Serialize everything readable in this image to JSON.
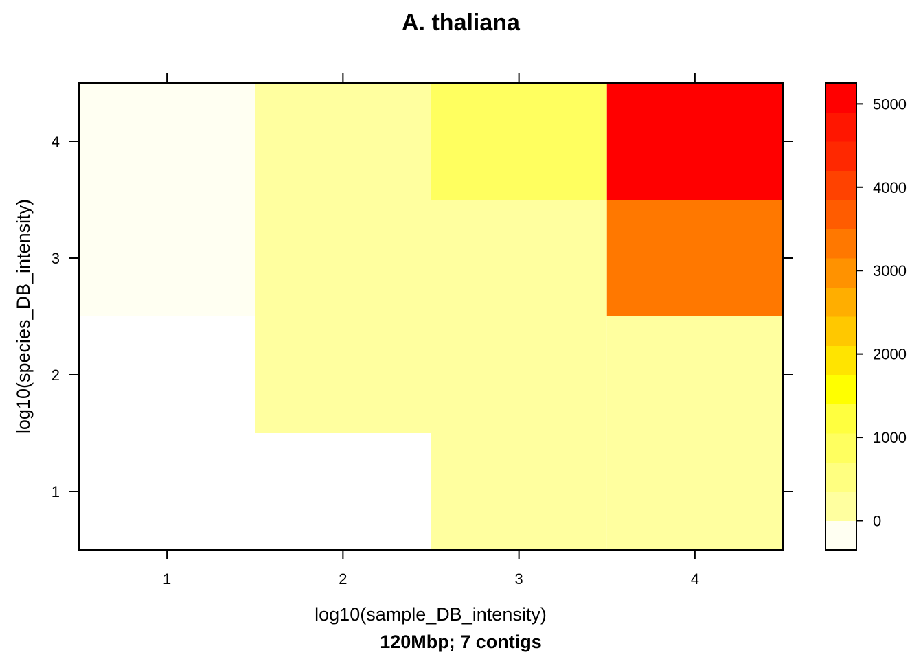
{
  "chart_data": {
    "type": "heatmap",
    "title": "A. thaliana",
    "xlabel": "log10(sample_DB_intensity)",
    "ylabel": "log10(species_DB_intensity)",
    "subtitle": "120Mbp; 7 contigs",
    "x": [
      1,
      2,
      3,
      4
    ],
    "y": [
      1,
      2,
      3,
      4
    ],
    "x_ticks": [
      "1",
      "2",
      "3",
      "4"
    ],
    "y_ticks": [
      "1",
      "2",
      "3",
      "4"
    ],
    "xlim": [
      0.5,
      4.5
    ],
    "ylim": [
      0.5,
      4.5
    ],
    "z_comment_none": "null = empty cell",
    "z": [
      [
        null,
        null,
        30,
        30
      ],
      [
        null,
        30,
        30,
        30
      ],
      [
        -300,
        30,
        30,
        3200
      ],
      [
        -300,
        30,
        700,
        5200
      ]
    ],
    "colorkey": {
      "ticks": [
        0,
        1000,
        2000,
        3000,
        4000,
        5000
      ],
      "tick_labels": [
        "0",
        "1000",
        "2000",
        "3000",
        "4000",
        "5000"
      ],
      "range": [
        -350,
        5250
      ],
      "colors": [
        "#FFFFF2",
        "#FFFF9F",
        "#FFFF80",
        "#FFFF5F",
        "#FFFF3F",
        "#FFFF00",
        "#FFE400",
        "#FFC800",
        "#FFAE00",
        "#FF9200",
        "#FF7800",
        "#FF5C00",
        "#FF4200",
        "#FF2800",
        "#FF1600",
        "#FF0000"
      ]
    },
    "grid": false,
    "legend": "colorkey-right"
  }
}
